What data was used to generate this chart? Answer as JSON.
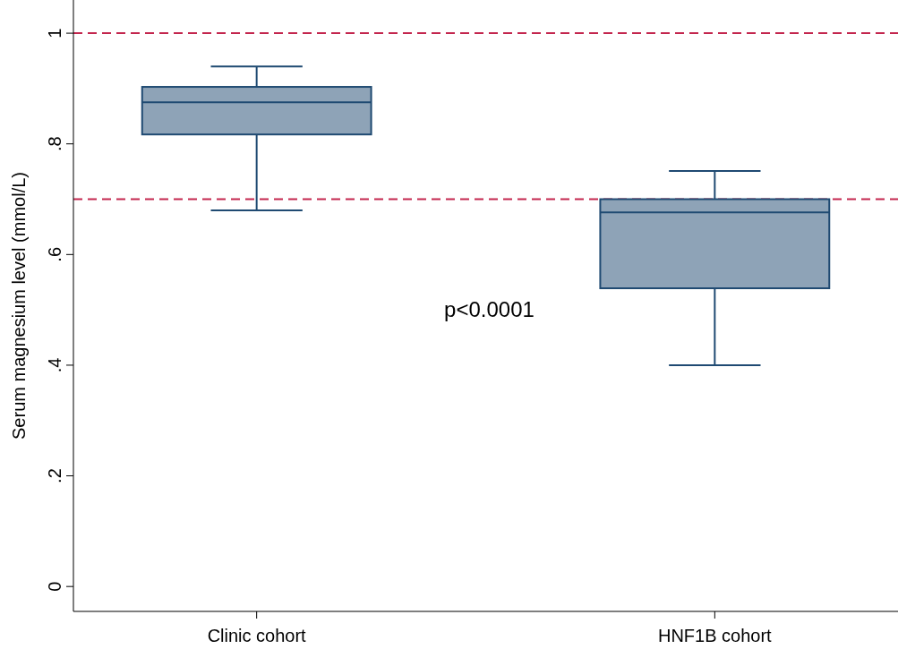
{
  "chart_data": {
    "type": "box",
    "categories": [
      "Clinic cohort",
      "HNF1B cohort"
    ],
    "boxes": [
      {
        "low": 0.68,
        "q1": 0.817,
        "median": 0.875,
        "q3": 0.903,
        "high": 0.94
      },
      {
        "low": 0.4,
        "q1": 0.539,
        "median": 0.676,
        "q3": 0.7,
        "high": 0.751
      }
    ],
    "color": "#8ea3b7",
    "ylabel": "Serum magnesium level (mmol/L)",
    "ylim": [
      -0.045,
      1.06
    ],
    "yticks": [
      {
        "value": 0,
        "label": "0"
      },
      {
        "value": 0.2,
        "label": ".2"
      },
      {
        "value": 0.4,
        "label": ".4"
      },
      {
        "value": 0.6,
        "label": ".6"
      },
      {
        "value": 0.8,
        "label": ".8"
      },
      {
        "value": 1,
        "label": "1"
      }
    ],
    "ref_lines": [
      {
        "axis": "y",
        "value": 1,
        "color": "#c3264e",
        "line_style": "dashed"
      },
      {
        "axis": "y",
        "value": 0.7,
        "color": "#c3264e",
        "line_style": "dashed"
      }
    ],
    "annotations": [
      "p<0.0001"
    ],
    "grid": false
  }
}
